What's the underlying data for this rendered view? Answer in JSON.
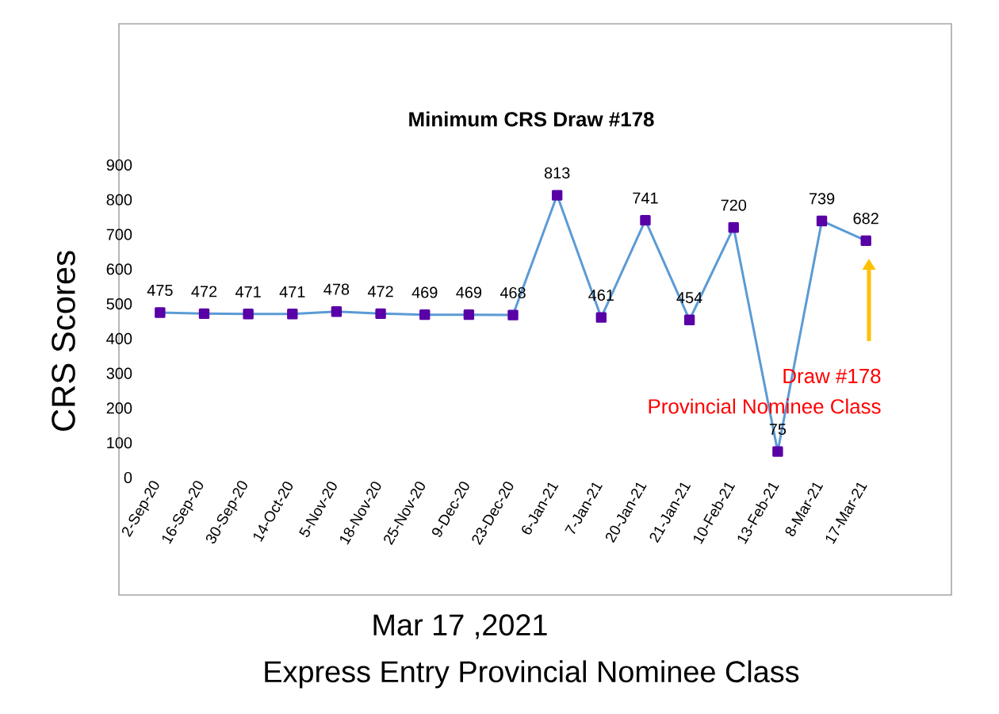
{
  "chart_data": {
    "type": "line",
    "title": "Minimum CRS Draw #178",
    "ylabel": "CRS Scores",
    "categories": [
      "2-Sep-20",
      "16-Sep-20",
      "30-Sep-20",
      "14-Oct-20",
      "5-Nov-20",
      "18-Nov-20",
      "25-Nov-20",
      "9-Dec-20",
      "23-Dec-20",
      "6-Jan-21",
      "7-Jan-21",
      "20-Jan-21",
      "21-Jan-21",
      "10-Feb-21",
      "13-Feb-21",
      "8-Mar-21",
      "17-Mar-21"
    ],
    "series": [
      {
        "color": "#5b9bd5",
        "values": [
          475,
          472,
          471,
          471,
          478,
          472,
          469,
          469,
          468,
          813,
          461,
          741,
          454,
          720,
          75,
          739,
          682
        ]
      }
    ],
    "ylim": [
      0,
      900
    ],
    "yticks": [
      0,
      100,
      200,
      300,
      400,
      500,
      600,
      700,
      800,
      900
    ],
    "marker": "square",
    "data_labels": true,
    "grid": false,
    "annotations": [
      "Draw #178",
      "Provincial Nominee Class",
      "Mar 17 ,2021",
      "Express Entry Provincial Nominee Class"
    ]
  }
}
